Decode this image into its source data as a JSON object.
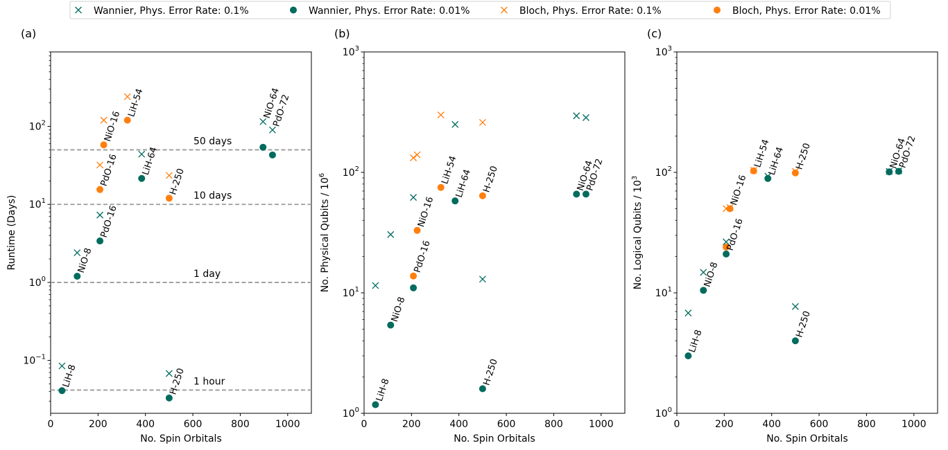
{
  "colors": {
    "wannier": "#016b5e",
    "bloch": "#ff7f0e",
    "guide": "#9a9a9a"
  },
  "legend": {
    "items": [
      {
        "label": "Wannier, Phys. Error Rate: 0.1%",
        "marker": "x",
        "color": "#016b5e"
      },
      {
        "label": "Wannier, Phys. Error Rate: 0.01%",
        "marker": "o",
        "color": "#016b5e"
      },
      {
        "label": "Bloch, Phys. Error Rate: 0.1%",
        "marker": "x",
        "color": "#ff7f0e"
      },
      {
        "label": "Bloch, Phys. Error Rate: 0.01%",
        "marker": "o",
        "color": "#ff7f0e"
      }
    ]
  },
  "chart_data": [
    {
      "type": "scatter",
      "panel_label": "(a)",
      "xlabel": "No. Spin Orbitals",
      "ylabel": "Runtime (Days)",
      "xlim": [
        0,
        1100
      ],
      "ylim": [
        0.021,
        900
      ],
      "yscale": "log",
      "xticks": [
        "0",
        "200",
        "400",
        "600",
        "800",
        "1000"
      ],
      "yticks": [
        {
          "value": 0.1,
          "base": "10",
          "exp": "−1"
        },
        {
          "value": 1,
          "base": "10",
          "exp": "0"
        },
        {
          "value": 10,
          "base": "10",
          "exp": "1"
        },
        {
          "value": 100,
          "base": "10",
          "exp": "2"
        }
      ],
      "hlines": [
        {
          "y": 50,
          "label": "50 days"
        },
        {
          "y": 10,
          "label": "10 days"
        },
        {
          "y": 1,
          "label": "1 day"
        },
        {
          "y": 0.0417,
          "label": "1 hour"
        }
      ],
      "series": [
        {
          "name": "Wannier, Phys. Error Rate: 0.1%",
          "marker": "x",
          "color": "#016b5e",
          "points": [
            [
              48,
              0.085
            ],
            [
              112,
              2.4
            ],
            [
              208,
              7.3
            ],
            [
              384,
              44
            ],
            [
              500,
              0.068
            ],
            [
              896,
              115
            ],
            [
              936,
              90
            ]
          ]
        },
        {
          "name": "Wannier, Phys. Error Rate: 0.01%",
          "marker": "o",
          "color": "#016b5e",
          "points": [
            [
              48,
              0.041
            ],
            [
              112,
              1.2
            ],
            [
              208,
              3.4
            ],
            [
              384,
              21.5
            ],
            [
              500,
              0.033
            ],
            [
              896,
              54
            ],
            [
              936,
              43
            ]
          ]
        },
        {
          "name": "Bloch, Phys. Error Rate: 0.1%",
          "marker": "x",
          "color": "#ff7f0e",
          "points": [
            [
              208,
              32
            ],
            [
              224,
              120
            ],
            [
              324,
              240
            ],
            [
              500,
              23.5
            ]
          ]
        },
        {
          "name": "Bloch, Phys. Error Rate: 0.01%",
          "marker": "o",
          "color": "#ff7f0e",
          "points": [
            [
              208,
              15.5
            ],
            [
              224,
              58
            ],
            [
              324,
              120
            ],
            [
              500,
              12
            ]
          ]
        }
      ],
      "annotations": [
        {
          "text": "LiH-8",
          "x": 48,
          "y": 0.041
        },
        {
          "text": "NiO-8",
          "x": 112,
          "y": 1.2
        },
        {
          "text": "PdO-16",
          "x": 208,
          "y": 3.4
        },
        {
          "text": "PdO-16",
          "x": 208,
          "y": 15.5
        },
        {
          "text": "NiO-16",
          "x": 224,
          "y": 58
        },
        {
          "text": "LiH-54",
          "x": 324,
          "y": 120
        },
        {
          "text": "LiH-64",
          "x": 384,
          "y": 21.5
        },
        {
          "text": "H-250",
          "x": 500,
          "y": 12
        },
        {
          "text": "H-250",
          "x": 500,
          "y": 0.033
        },
        {
          "text": "NiO-64",
          "x": 896,
          "y": 115
        },
        {
          "text": "PdO-72",
          "x": 936,
          "y": 90
        }
      ]
    },
    {
      "type": "scatter",
      "panel_label": "(b)",
      "xlabel": "No. Spin Orbitals",
      "ylabel": "No. Physical Qubits / 10",
      "ylabel_sup": "6",
      "xlim": [
        0,
        1100
      ],
      "ylim": [
        1,
        1000
      ],
      "yscale": "log",
      "xticks": [
        "0",
        "200",
        "400",
        "600",
        "800",
        "1000"
      ],
      "yticks": [
        {
          "value": 1,
          "base": "10",
          "exp": "0"
        },
        {
          "value": 10,
          "base": "10",
          "exp": "1"
        },
        {
          "value": 100,
          "base": "10",
          "exp": "2"
        },
        {
          "value": 1000,
          "base": "10",
          "exp": "3"
        }
      ],
      "hlines": [],
      "series": [
        {
          "name": "Wannier, Phys. Error Rate: 0.1%",
          "marker": "x",
          "color": "#016b5e",
          "points": [
            [
              48,
              11.5
            ],
            [
              112,
              30.5
            ],
            [
              208,
              62
            ],
            [
              384,
              250
            ],
            [
              500,
              13
            ],
            [
              896,
              295
            ],
            [
              936,
              285
            ]
          ]
        },
        {
          "name": "Wannier, Phys. Error Rate: 0.01%",
          "marker": "o",
          "color": "#016b5e",
          "points": [
            [
              48,
              1.18
            ],
            [
              112,
              5.4
            ],
            [
              208,
              11
            ],
            [
              384,
              58
            ],
            [
              500,
              1.6
            ],
            [
              896,
              66
            ],
            [
              936,
              66
            ]
          ]
        },
        {
          "name": "Bloch, Phys. Error Rate: 0.1%",
          "marker": "x",
          "color": "#ff7f0e",
          "points": [
            [
              208,
              132
            ],
            [
              224,
              140
            ],
            [
              324,
              300
            ],
            [
              500,
              260
            ]
          ]
        },
        {
          "name": "Bloch, Phys. Error Rate: 0.01%",
          "marker": "o",
          "color": "#ff7f0e",
          "points": [
            [
              208,
              13.8
            ],
            [
              224,
              33
            ],
            [
              324,
              75
            ],
            [
              500,
              64
            ]
          ]
        }
      ],
      "annotations": [
        {
          "text": "LiH-8",
          "x": 48,
          "y": 1.18
        },
        {
          "text": "NiO-8",
          "x": 112,
          "y": 5.4
        },
        {
          "text": "PdO-16",
          "x": 208,
          "y": 13.8
        },
        {
          "text": "NiO-16",
          "x": 224,
          "y": 33
        },
        {
          "text": "LiH-54",
          "x": 324,
          "y": 75
        },
        {
          "text": "LiH-64",
          "x": 384,
          "y": 58
        },
        {
          "text": "H-250",
          "x": 500,
          "y": 64
        },
        {
          "text": "H-250",
          "x": 500,
          "y": 1.6
        },
        {
          "text": "NiO-64",
          "x": 896,
          "y": 66
        },
        {
          "text": "PdO-72",
          "x": 936,
          "y": 66
        }
      ]
    },
    {
      "type": "scatter",
      "panel_label": "(c)",
      "xlabel": "No. Spin Orbitals",
      "ylabel": "No. Logical Qubits / 10",
      "ylabel_sup": "3",
      "xlim": [
        0,
        1100
      ],
      "ylim": [
        1,
        1000
      ],
      "yscale": "log",
      "xticks": [
        "0",
        "200",
        "400",
        "600",
        "800",
        "1000"
      ],
      "yticks": [
        {
          "value": 1,
          "base": "10",
          "exp": "0"
        },
        {
          "value": 10,
          "base": "10",
          "exp": "1"
        },
        {
          "value": 100,
          "base": "10",
          "exp": "2"
        },
        {
          "value": 1000,
          "base": "10",
          "exp": "3"
        }
      ],
      "hlines": [],
      "series": [
        {
          "name": "Wannier, Phys. Error Rate: 0.1%",
          "marker": "x",
          "color": "#016b5e",
          "points": [
            [
              48,
              6.8
            ],
            [
              112,
              14.8
            ],
            [
              208,
              26.5
            ],
            [
              384,
              93
            ],
            [
              500,
              7.7
            ],
            [
              896,
              102
            ],
            [
              936,
              103
            ]
          ]
        },
        {
          "name": "Wannier, Phys. Error Rate: 0.01%",
          "marker": "o",
          "color": "#016b5e",
          "points": [
            [
              48,
              3.0
            ],
            [
              112,
              10.5
            ],
            [
              208,
              21
            ],
            [
              384,
              89
            ],
            [
              500,
              4.0
            ],
            [
              896,
              101
            ],
            [
              936,
              102
            ]
          ]
        },
        {
          "name": "Bloch, Phys. Error Rate: 0.1%",
          "marker": "x",
          "color": "#ff7f0e",
          "points": [
            [
              208,
              50
            ],
            [
              224,
              51
            ],
            [
              324,
              104
            ],
            [
              500,
              102
            ]
          ]
        },
        {
          "name": "Bloch, Phys. Error Rate: 0.01%",
          "marker": "o",
          "color": "#ff7f0e",
          "points": [
            [
              208,
              24
            ],
            [
              224,
              50
            ],
            [
              324,
              103
            ],
            [
              500,
              99
            ]
          ]
        }
      ],
      "annotations": [
        {
          "text": "LiH-8",
          "x": 48,
          "y": 3.0
        },
        {
          "text": "NiO-8",
          "x": 112,
          "y": 10.5
        },
        {
          "text": "PdO-16",
          "x": 208,
          "y": 21
        },
        {
          "text": "NiO-16",
          "x": 224,
          "y": 50
        },
        {
          "text": "LiH-54",
          "x": 324,
          "y": 103
        },
        {
          "text": "LiH-64",
          "x": 384,
          "y": 89
        },
        {
          "text": "H-250",
          "x": 500,
          "y": 99
        },
        {
          "text": "H-250",
          "x": 500,
          "y": 4.0
        },
        {
          "text": "NiO-64",
          "x": 896,
          "y": 101
        },
        {
          "text": "PdO-72",
          "x": 936,
          "y": 102
        }
      ]
    }
  ]
}
